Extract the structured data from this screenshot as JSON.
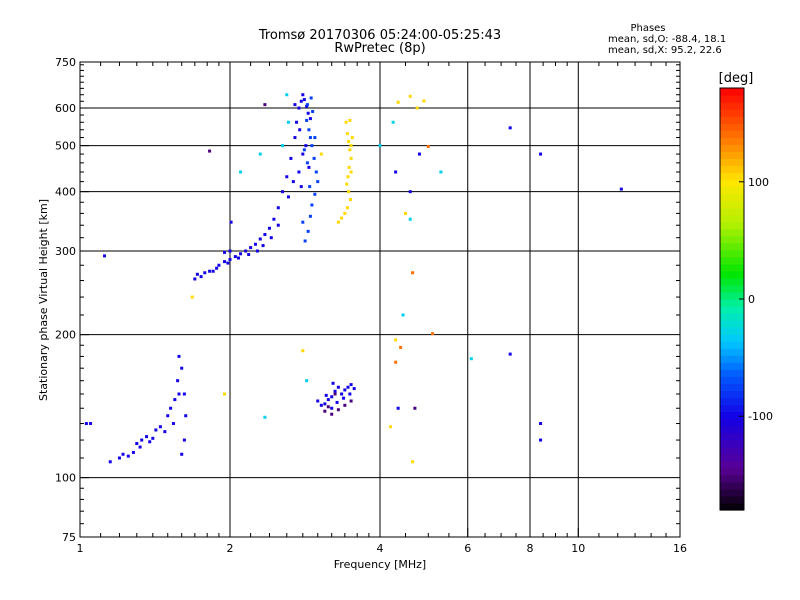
{
  "chart_data": {
    "type": "scatter",
    "title": "Tromsø 20170306 05:24:00-05:25:43",
    "subtitle": "RwPretec (8p)",
    "xlabel": "Frequency [MHz]",
    "ylabel": "Stationary phase Virtual Height [km]",
    "x_scale": "log",
    "y_scale": "log",
    "xlim": [
      1,
      16
    ],
    "ylim": [
      75,
      750
    ],
    "x_ticks": [
      "1",
      "2",
      "4",
      "6",
      "8",
      "10",
      "16"
    ],
    "x_tick_values": [
      1,
      2,
      4,
      6,
      8,
      10,
      16
    ],
    "y_ticks": [
      "75",
      "100",
      "200",
      "300",
      "400",
      "500",
      "600",
      "750"
    ],
    "y_tick_values": [
      75,
      100,
      200,
      300,
      400,
      500,
      600,
      750
    ],
    "grid": true,
    "colorbar": {
      "label": "[deg]",
      "ticks": [
        "100",
        "0",
        "-100"
      ],
      "tick_values": [
        100,
        0,
        -100
      ],
      "range": [
        -180,
        180
      ]
    },
    "stats": {
      "heading": "Phases",
      "line_o": "mean, sd,O: -88.4, 18.1",
      "line_x": "mean, sd,X:  95.2, 22.6"
    },
    "series": [
      {
        "phase": -100,
        "points": [
          [
            1.03,
            130
          ],
          [
            1.05,
            130
          ],
          [
            1.15,
            108
          ],
          [
            1.2,
            110
          ],
          [
            1.22,
            112
          ],
          [
            1.25,
            111
          ],
          [
            1.28,
            113
          ],
          [
            1.3,
            118
          ],
          [
            1.33,
            120
          ],
          [
            1.36,
            122
          ],
          [
            1.4,
            121
          ],
          [
            1.42,
            126
          ],
          [
            1.45,
            128
          ],
          [
            1.5,
            135
          ],
          [
            1.52,
            140
          ],
          [
            1.55,
            146
          ],
          [
            1.57,
            160
          ],
          [
            1.58,
            180
          ],
          [
            1.6,
            170
          ],
          [
            1.62,
            150
          ],
          [
            1.63,
            135
          ],
          [
            1.62,
            120
          ],
          [
            1.6,
            112
          ],
          [
            1.58,
            150
          ],
          [
            1.54,
            130
          ],
          [
            1.48,
            125
          ],
          [
            1.38,
            119
          ],
          [
            1.32,
            116
          ],
          [
            1.72,
            268
          ],
          [
            1.78,
            270
          ],
          [
            1.85,
            272
          ],
          [
            1.9,
            280
          ],
          [
            1.95,
            285
          ],
          [
            2.0,
            288
          ],
          [
            2.05,
            292
          ],
          [
            2.1,
            296
          ],
          [
            2.15,
            300
          ],
          [
            2.2,
            305
          ],
          [
            2.25,
            310
          ],
          [
            2.3,
            318
          ],
          [
            2.35,
            325
          ],
          [
            2.4,
            335
          ],
          [
            2.45,
            350
          ],
          [
            2.5,
            370
          ],
          [
            2.55,
            400
          ],
          [
            2.6,
            430
          ],
          [
            2.65,
            470
          ],
          [
            2.7,
            520
          ],
          [
            2.72,
            560
          ],
          [
            2.75,
            600
          ],
          [
            2.78,
            620
          ],
          [
            2.8,
            640
          ],
          [
            2.82,
            625
          ],
          [
            2.85,
            605
          ],
          [
            2.87,
            585
          ],
          [
            2.9,
            570
          ],
          [
            2.8,
            480
          ],
          [
            2.75,
            440
          ],
          [
            2.68,
            420
          ],
          [
            2.62,
            390
          ],
          [
            2.5,
            340
          ],
          [
            2.42,
            320
          ],
          [
            2.33,
            308
          ],
          [
            2.27,
            300
          ],
          [
            2.18,
            295
          ],
          [
            2.08,
            290
          ],
          [
            1.98,
            283
          ],
          [
            1.88,
            276
          ],
          [
            1.82,
            272
          ],
          [
            1.75,
            265
          ],
          [
            1.7,
            262
          ],
          [
            2.0,
            300
          ],
          [
            1.95,
            298
          ],
          [
            2.7,
            610
          ],
          [
            2.76,
            540
          ],
          [
            2.84,
            500
          ],
          [
            2.88,
            450
          ],
          [
            2.78,
            410
          ],
          [
            3.0,
            145
          ],
          [
            3.05,
            142
          ],
          [
            3.1,
            143
          ],
          [
            3.15,
            146
          ],
          [
            3.2,
            148
          ],
          [
            3.25,
            152
          ],
          [
            3.3,
            155
          ],
          [
            3.35,
            150
          ],
          [
            3.4,
            153
          ],
          [
            3.45,
            155
          ],
          [
            3.5,
            157
          ],
          [
            3.55,
            154
          ],
          [
            3.2,
            140
          ],
          [
            3.28,
            144
          ],
          [
            3.38,
            147
          ],
          [
            3.48,
            150
          ],
          [
            3.12,
            149
          ],
          [
            3.22,
            158
          ],
          [
            1.12,
            293
          ],
          [
            2.01,
            345
          ],
          [
            4.3,
            440
          ],
          [
            4.6,
            400
          ],
          [
            4.8,
            480
          ],
          [
            8.4,
            480
          ],
          [
            8.4,
            130
          ],
          [
            8.4,
            120
          ],
          [
            7.3,
            545
          ],
          [
            12.2,
            405
          ],
          [
            7.3,
            182
          ],
          [
            4.35,
            140
          ]
        ]
      },
      {
        "phase": -75,
        "points": [
          [
            2.85,
            565
          ],
          [
            2.88,
            540
          ],
          [
            2.9,
            520
          ],
          [
            2.92,
            500
          ],
          [
            2.95,
            470
          ],
          [
            2.98,
            440
          ],
          [
            3.0,
            420
          ],
          [
            2.96,
            395
          ],
          [
            2.92,
            375
          ],
          [
            2.9,
            355
          ],
          [
            2.87,
            330
          ],
          [
            2.83,
            315
          ],
          [
            2.8,
            345
          ],
          [
            2.86,
            460
          ],
          [
            2.93,
            590
          ],
          [
            2.86,
            610
          ],
          [
            2.91,
            630
          ],
          [
            2.82,
            490
          ],
          [
            2.89,
            410
          ],
          [
            2.96,
            520
          ]
        ]
      },
      {
        "phase": -150,
        "points": [
          [
            3.1,
            138
          ],
          [
            3.2,
            136
          ],
          [
            3.3,
            139
          ],
          [
            3.4,
            142
          ],
          [
            3.5,
            145
          ],
          [
            3.15,
            141
          ],
          [
            3.25,
            150
          ],
          [
            2.35,
            610
          ],
          [
            1.82,
            487
          ],
          [
            4.7,
            140
          ]
        ]
      },
      {
        "phase": 105,
        "points": [
          [
            3.42,
            560
          ],
          [
            3.44,
            530
          ],
          [
            3.46,
            510
          ],
          [
            3.48,
            490
          ],
          [
            3.5,
            470
          ],
          [
            3.47,
            450
          ],
          [
            3.45,
            430
          ],
          [
            3.43,
            415
          ],
          [
            3.46,
            400
          ],
          [
            3.49,
            385
          ],
          [
            3.44,
            370
          ],
          [
            3.4,
            360
          ],
          [
            3.35,
            352
          ],
          [
            3.3,
            345
          ],
          [
            3.5,
            500
          ],
          [
            3.52,
            520
          ],
          [
            4.35,
            617
          ],
          [
            4.6,
            635
          ],
          [
            4.75,
            600
          ],
          [
            4.9,
            621
          ],
          [
            2.8,
            185
          ],
          [
            4.65,
            108
          ],
          [
            4.5,
            360
          ],
          [
            4.3,
            195
          ],
          [
            4.2,
            128
          ],
          [
            1.68,
            240
          ],
          [
            1.95,
            150
          ],
          [
            3.05,
            480
          ],
          [
            3.48,
            565
          ],
          [
            3.5,
            440
          ]
        ]
      },
      {
        "phase": 140,
        "points": [
          [
            4.65,
            270
          ],
          [
            5.1,
            201
          ],
          [
            4.3,
            175
          ],
          [
            4.4,
            188
          ],
          [
            5.0,
            498
          ]
        ]
      },
      {
        "phase": -30,
        "points": [
          [
            2.6,
            640
          ],
          [
            2.62,
            560
          ],
          [
            2.55,
            500
          ],
          [
            2.3,
            480
          ],
          [
            2.1,
            440
          ],
          [
            4.25,
            560
          ],
          [
            4.45,
            220
          ],
          [
            4.6,
            350
          ],
          [
            5.3,
            440
          ],
          [
            6.1,
            178
          ],
          [
            2.35,
            134
          ],
          [
            2.85,
            160
          ],
          [
            4.0,
            500
          ]
        ]
      }
    ]
  }
}
